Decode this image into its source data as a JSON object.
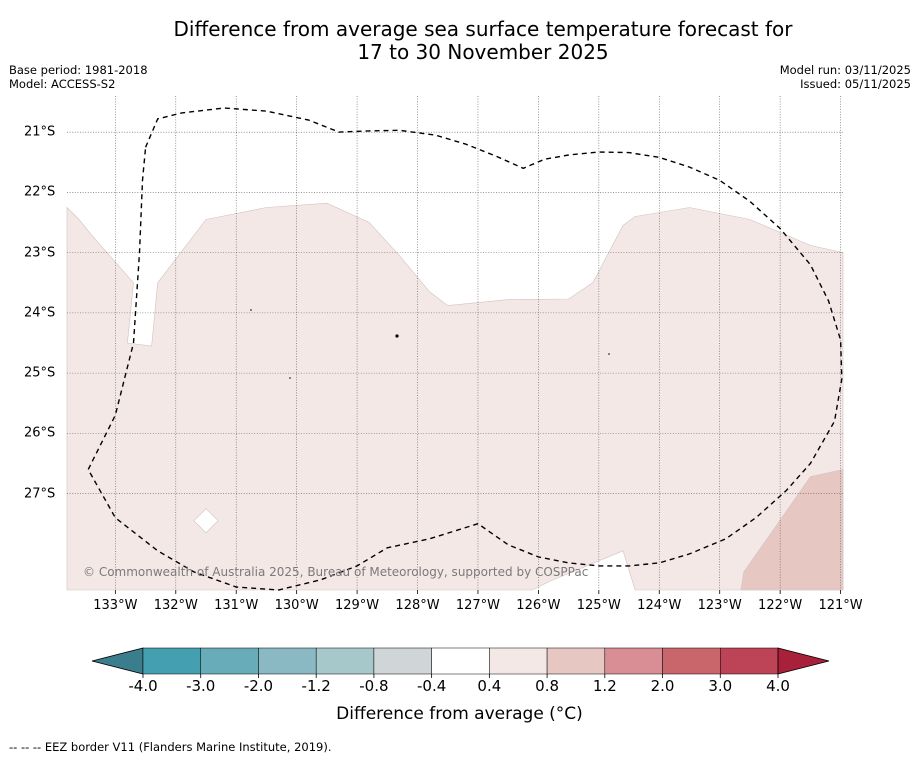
{
  "header": {
    "title_line1": "Difference from average sea surface temperature forecast for",
    "title_line2": "17 to 30 November 2025",
    "base_period": "Base period: 1981-2018",
    "model": "Model: ACCESS-S2",
    "model_run": "Model run: 03/11/2025",
    "issued": "Issued: 05/11/2025"
  },
  "map": {
    "extent": {
      "lon_min": -133.8,
      "lon_max": -120.96,
      "lat_min": -28.6,
      "lat_max": -20.4
    },
    "longitude_ticks": [
      -133,
      -132,
      -131,
      -130,
      -129,
      -128,
      -127,
      -126,
      -125,
      -124,
      -123,
      -122,
      -121
    ],
    "longitude_labels": [
      "133°W",
      "132°W",
      "131°W",
      "130°W",
      "129°W",
      "128°W",
      "127°W",
      "126°W",
      "125°W",
      "124°W",
      "123°W",
      "122°W",
      "121°W"
    ],
    "latitude_ticks": [
      -21,
      -22,
      -23,
      -24,
      -25,
      -26,
      -27
    ],
    "latitude_labels": [
      "21°S",
      "22°S",
      "23°S",
      "24°S",
      "25°S",
      "26°S",
      "27°S"
    ],
    "gridlines": true,
    "copyright": "© Commonwealth of Australia 2025, Bureau of Meteorology, supported by COSPPac",
    "anomaly_regions": [
      {
        "class": "0.4 to 0.8",
        "color": "#f4e8e7",
        "polygon": [
          [
            -133.8,
            -22.25
          ],
          [
            -133.6,
            -22.45
          ],
          [
            -133.4,
            -22.7
          ],
          [
            -132.7,
            -23.5
          ],
          [
            -132.8,
            -24.5
          ],
          [
            -132.4,
            -24.55
          ],
          [
            -132.3,
            -23.5
          ],
          [
            -131.5,
            -22.45
          ],
          [
            -130.5,
            -22.25
          ],
          [
            -129.5,
            -22.18
          ],
          [
            -128.8,
            -22.5
          ],
          [
            -128.3,
            -23.05
          ],
          [
            -127.8,
            -23.65
          ],
          [
            -127.5,
            -23.88
          ],
          [
            -126.5,
            -23.78
          ],
          [
            -125.5,
            -23.77
          ],
          [
            -125.1,
            -23.5
          ],
          [
            -124.6,
            -22.55
          ],
          [
            -124.4,
            -22.4
          ],
          [
            -123.5,
            -22.25
          ],
          [
            -122.5,
            -22.45
          ],
          [
            -121.5,
            -22.88
          ],
          [
            -120.96,
            -23.0
          ],
          [
            -120.96,
            -28.6
          ],
          [
            -124.4,
            -28.6
          ],
          [
            -124.6,
            -27.95
          ],
          [
            -125.8,
            -28.45
          ],
          [
            -126.1,
            -28.6
          ],
          [
            -133.8,
            -28.6
          ]
        ]
      },
      {
        "class": "0.8 to 1.2",
        "color": "#e7c7c2",
        "polygon": [
          [
            -120.96,
            -26.6
          ],
          [
            -121.5,
            -26.72
          ],
          [
            -122.6,
            -28.3
          ],
          [
            -122.65,
            -28.6
          ],
          [
            -120.96,
            -28.6
          ]
        ]
      }
    ],
    "neutral_patches": [
      [
        [
          -131.5,
          -27.25
        ],
        [
          -131.3,
          -27.45
        ],
        [
          -131.5,
          -27.65
        ],
        [
          -131.7,
          -27.45
        ]
      ]
    ],
    "eez_border": [
      [
        -132.5,
        -21.25
      ],
      [
        -132.3,
        -20.78
      ],
      [
        -131.9,
        -20.68
      ],
      [
        -131.2,
        -20.6
      ],
      [
        -130.5,
        -20.65
      ],
      [
        -129.8,
        -20.8
      ],
      [
        -129.3,
        -21.0
      ],
      [
        -128.8,
        -20.98
      ],
      [
        -128.3,
        -20.97
      ],
      [
        -127.7,
        -21.05
      ],
      [
        -127.2,
        -21.2
      ],
      [
        -126.7,
        -21.4
      ],
      [
        -126.25,
        -21.6
      ],
      [
        -125.9,
        -21.45
      ],
      [
        -125.5,
        -21.38
      ],
      [
        -125.0,
        -21.33
      ],
      [
        -124.5,
        -21.34
      ],
      [
        -124.0,
        -21.42
      ],
      [
        -123.5,
        -21.58
      ],
      [
        -123.0,
        -21.8
      ],
      [
        -122.5,
        -22.15
      ],
      [
        -122.0,
        -22.6
      ],
      [
        -121.5,
        -23.2
      ],
      [
        -121.2,
        -23.8
      ],
      [
        -121.0,
        -24.45
      ],
      [
        -120.98,
        -25.1
      ],
      [
        -121.1,
        -25.8
      ],
      [
        -121.5,
        -26.5
      ],
      [
        -121.9,
        -26.95
      ],
      [
        -122.4,
        -27.4
      ],
      [
        -122.9,
        -27.75
      ],
      [
        -123.5,
        -28.0
      ],
      [
        -124.0,
        -28.15
      ],
      [
        -124.5,
        -28.2
      ],
      [
        -125.0,
        -28.2
      ],
      [
        -125.5,
        -28.15
      ],
      [
        -126.0,
        -28.05
      ],
      [
        -126.5,
        -27.85
      ],
      [
        -127.0,
        -27.5
      ],
      [
        -127.8,
        -27.75
      ],
      [
        -128.5,
        -27.9
      ],
      [
        -129.0,
        -28.2
      ],
      [
        -129.6,
        -28.43
      ],
      [
        -130.3,
        -28.6
      ],
      [
        -131.0,
        -28.55
      ],
      [
        -131.7,
        -28.3
      ],
      [
        -132.3,
        -27.95
      ],
      [
        -133.0,
        -27.4
      ],
      [
        -133.45,
        -26.6
      ],
      [
        -133.0,
        -25.7
      ],
      [
        -132.7,
        -24.5
      ],
      [
        -132.6,
        -23.0
      ],
      [
        -132.55,
        -21.8
      ],
      [
        -132.5,
        -21.25
      ]
    ]
  },
  "colorbar": {
    "label": "Difference from average (°C)",
    "ticks": [
      "-4.0",
      "-3.0",
      "-2.0",
      "-1.2",
      "-0.8",
      "-0.4",
      "0.4",
      "0.8",
      "1.2",
      "2.0",
      "3.0",
      "4.0"
    ],
    "colors": [
      "#449fb0",
      "#69acb9",
      "#8ab8c3",
      "#a7c8cb",
      "#d0d6d8",
      "#ffffff",
      "#f4e8e7",
      "#e7c7c2",
      "#d98e95",
      "#c9666c",
      "#bd4456"
    ],
    "extend_low_color": "#3a7e8e",
    "extend_high_color": "#a8203a"
  },
  "legend": {
    "eez_text": "--  --  -- EEZ border V11 (Flanders Marine Institute, 2019)."
  }
}
